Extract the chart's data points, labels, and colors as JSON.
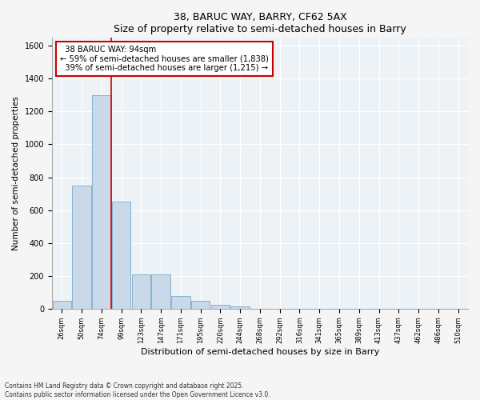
{
  "title1": "38, BARUC WAY, BARRY, CF62 5AX",
  "title2": "Size of property relative to semi-detached houses in Barry",
  "xlabel": "Distribution of semi-detached houses by size in Barry",
  "ylabel": "Number of semi-detached properties",
  "categories": [
    "26sqm",
    "50sqm",
    "74sqm",
    "99sqm",
    "123sqm",
    "147sqm",
    "171sqm",
    "195sqm",
    "220sqm",
    "244sqm",
    "268sqm",
    "292sqm",
    "316sqm",
    "341sqm",
    "365sqm",
    "389sqm",
    "413sqm",
    "437sqm",
    "462sqm",
    "486sqm",
    "510sqm"
  ],
  "values": [
    50,
    750,
    1300,
    650,
    210,
    210,
    75,
    50,
    25,
    15,
    0,
    0,
    0,
    0,
    0,
    0,
    0,
    0,
    0,
    0,
    0
  ],
  "bar_color": "#c9d9ea",
  "bar_edge_color": "#7aaac8",
  "vline_color": "#cc0000",
  "annotation_box_color": "#cc0000",
  "property_label": "38 BARUC WAY: 94sqm",
  "smaller_pct": 59,
  "smaller_count": 1838,
  "larger_pct": 39,
  "larger_count": 1215,
  "ylim": [
    0,
    1650
  ],
  "yticks": [
    0,
    200,
    400,
    600,
    800,
    1000,
    1200,
    1400,
    1600
  ],
  "background_color": "#edf2f7",
  "fig_facecolor": "#f5f5f5",
  "footnote1": "Contains HM Land Registry data © Crown copyright and database right 2025.",
  "footnote2": "Contains public sector information licensed under the Open Government Licence v3.0."
}
